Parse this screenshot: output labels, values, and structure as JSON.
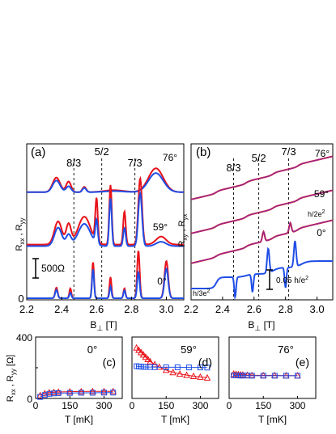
{
  "colors": {
    "red": "#e8121a",
    "blue": "#1f4ee6",
    "purple": "#8a2a9a",
    "black": "#000000"
  },
  "chart_data": [
    {
      "panel": "(a)",
      "type": "line",
      "xlabel": "B",
      "xlabel_sub": "⊥",
      "xlabel_unit": " [T]",
      "ylabel": "R",
      "ylabel_sub1": "xx",
      "ylabel_mid": " , R",
      "ylabel_sub2": "yy",
      "xlim": [
        2.2,
        3.1
      ],
      "xticks": [
        "2.2",
        "2.4",
        "2.6",
        "2.8",
        "3.0"
      ],
      "yzero_label": "0",
      "scale_bar": "500Ω",
      "fraction_labels": [
        {
          "label": "8/3",
          "B": 2.47
        },
        {
          "label": "5/2",
          "B": 2.63
        },
        {
          "label": "7/3",
          "B": 2.82
        }
      ],
      "traces": [
        {
          "angle": "76°",
          "offset_ohm": 1600,
          "base": 0,
          "peaks": [
            {
              "B": 2.37,
              "h": 220,
              "w": 0.03
            },
            {
              "B": 2.44,
              "h": 160,
              "w": 0.02
            },
            {
              "B": 2.53,
              "h": 80,
              "w": 0.015
            },
            {
              "B": 2.7,
              "h": 30,
              "w": 0.08
            },
            {
              "B": 2.94,
              "h": 360,
              "w": 0.06
            }
          ]
        },
        {
          "angle": "59°",
          "offset_ohm": 750,
          "base": 60,
          "peaks": [
            {
              "B": 2.38,
              "h": 350,
              "w": 0.03
            },
            {
              "B": 2.44,
              "h": 300,
              "w": 0.02
            },
            {
              "B": 2.53,
              "h": 420,
              "w": 0.05
            },
            {
              "B": 2.6,
              "h": 650,
              "w": 0.01
            },
            {
              "B": 2.68,
              "h": 900,
              "w": 0.01
            },
            {
              "B": 2.76,
              "h": 500,
              "w": 0.01
            },
            {
              "B": 2.85,
              "h": 1000,
              "w": 0.015
            },
            {
              "B": 2.97,
              "h": 120,
              "w": 0.04
            }
          ]
        },
        {
          "angle": "0°",
          "offset_ohm": 0,
          "base": 0,
          "peaks": [
            {
              "B": 2.37,
              "h": 160,
              "w": 0.01
            },
            {
              "B": 2.45,
              "h": 150,
              "w": 0.008
            },
            {
              "B": 2.58,
              "h": 550,
              "w": 0.008
            },
            {
              "B": 2.68,
              "h": 320,
              "w": 0.008
            },
            {
              "B": 2.76,
              "h": 150,
              "w": 0.008
            },
            {
              "B": 2.84,
              "h": 720,
              "w": 0.01
            },
            {
              "B": 3.0,
              "h": 560,
              "w": 0.015
            }
          ]
        }
      ]
    },
    {
      "panel": "(b)",
      "type": "line",
      "xlabel": "B",
      "xlabel_sub": "⊥",
      "xlabel_unit": " [T]",
      "ylabel": "R",
      "ylabel_sub1": "xy",
      "ylabel_mid": " , R",
      "ylabel_sub2": "yx",
      "xlim": [
        2.2,
        3.1
      ],
      "xticks": [
        "2.2",
        "2.4",
        "2.6",
        "2.8",
        "3.0"
      ],
      "scale_bar": "0.05 h/e",
      "scale_bar_sup": "2",
      "plateau_labels": [
        {
          "text": "h/3e",
          "sup": "2"
        },
        {
          "text": "h/2e",
          "sup": "2"
        }
      ],
      "fraction_labels": [
        {
          "label": "8/3",
          "B": 2.47
        },
        {
          "label": "5/2",
          "B": 2.63
        },
        {
          "label": "7/3",
          "B": 2.82
        }
      ],
      "traces": [
        {
          "angle": "76°"
        },
        {
          "angle": "59°"
        },
        {
          "angle": "0°"
        }
      ]
    },
    {
      "panel": "(c)",
      "type": "scatter",
      "angle": "0°",
      "xlabel": "T [mK]",
      "ylabel": "R",
      "ylabel_sub1": "xx",
      "ylabel_mid": " , R",
      "ylabel_sub2": "yy",
      "ylabel_unit": " [Ω]",
      "xlim": [
        0,
        380
      ],
      "ylim": [
        0,
        400
      ],
      "xticks": [
        0,
        150,
        300
      ],
      "yticks": [
        0,
        200,
        400
      ],
      "series": [
        {
          "marker": "triangle",
          "color": "red",
          "x": [
            20,
            40,
            60,
            80,
            100,
            150,
            200,
            250,
            300,
            340
          ],
          "y": [
            20,
            32,
            38,
            40,
            42,
            44,
            45,
            46,
            46,
            46
          ]
        },
        {
          "marker": "square",
          "color": "blue",
          "x": [
            20,
            40,
            60,
            80,
            100,
            150,
            200,
            250,
            300,
            340
          ],
          "y": [
            10,
            22,
            30,
            33,
            35,
            36,
            37,
            37,
            38,
            38
          ]
        }
      ]
    },
    {
      "panel": "(d)",
      "type": "scatter",
      "angle": "59°",
      "xlabel": "T [mK]",
      "xlim": [
        0,
        380
      ],
      "ylim": [
        0,
        400
      ],
      "xticks": [
        0,
        150,
        300
      ],
      "series": [
        {
          "marker": "triangle",
          "color": "red",
          "x": [
            20,
            30,
            40,
            50,
            60,
            70,
            80,
            100,
            120,
            150,
            180,
            210,
            240,
            270,
            300,
            330
          ],
          "y": [
            330,
            315,
            300,
            285,
            270,
            255,
            240,
            222,
            205,
            185,
            170,
            160,
            152,
            145,
            140,
            135
          ]
        },
        {
          "marker": "square",
          "color": "blue",
          "x": [
            20,
            30,
            40,
            50,
            60,
            80,
            100,
            150,
            200,
            250,
            300,
            330
          ],
          "y": [
            210,
            208,
            207,
            206,
            205,
            205,
            204,
            203,
            203,
            202,
            202,
            201
          ]
        }
      ]
    },
    {
      "panel": "(e)",
      "type": "scatter",
      "angle": "76°",
      "xlabel": "T [mK]",
      "xlim": [
        0,
        380
      ],
      "ylim": [
        0,
        400
      ],
      "xticks": [
        0,
        150,
        300
      ],
      "series": [
        {
          "marker": "triangle",
          "color": "red",
          "x": [
            20,
            30,
            40,
            50,
            60,
            80,
            100,
            150,
            200,
            250,
            300
          ],
          "y": [
            160,
            158,
            156,
            155,
            154,
            152,
            151,
            150,
            150,
            149,
            149
          ]
        },
        {
          "marker": "square",
          "color": "blue",
          "x": [
            20,
            30,
            40,
            50,
            60,
            80,
            100,
            150,
            200,
            250,
            300
          ],
          "y": [
            150,
            150,
            150,
            149,
            149,
            149,
            148,
            148,
            148,
            148,
            148
          ]
        }
      ]
    }
  ]
}
